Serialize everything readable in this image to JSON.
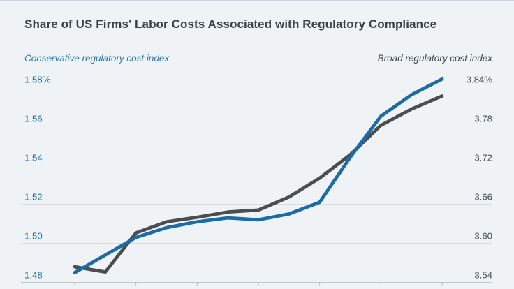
{
  "page": {
    "title": "Share of US Firms' Labor Costs Associated with Regulatory Compliance"
  },
  "legend": {
    "left_label": "Conservative regulatory cost index",
    "right_label": "Broad regulatory cost index"
  },
  "colors": {
    "background": "#eff3f6",
    "top_border": "#cdd3da",
    "title_text": "#3b4247",
    "conservative_line": "#1b6ca6",
    "broad_line": "#4b4d4e",
    "left_axis_text": "#1d6ba3",
    "right_axis_text": "#474f54",
    "gridline": "#d9dde1",
    "axis_line": "#c2c8d0",
    "tick": "#b6bcc4"
  },
  "chart_data": {
    "type": "line",
    "title": "Share of US Firms' Labor Costs Associated with Regulatory Compliance",
    "grid": true,
    "x_tick_count": 7,
    "x_tick_labels": [],
    "x_tick_labels_visible": false,
    "points_per_series": 13,
    "series": [
      {
        "name": "Conservative regulatory cost index",
        "axis": "left",
        "color": "#1b6ca6",
        "values": [
          1.485,
          1.494,
          1.503,
          1.508,
          1.511,
          1.513,
          1.512,
          1.515,
          1.521,
          1.544,
          1.565,
          1.576,
          1.584
        ]
      },
      {
        "name": "Broad regulatory cost index",
        "axis": "right",
        "color": "#4b4d4e",
        "values": [
          3.564,
          3.556,
          3.616,
          3.633,
          3.64,
          3.648,
          3.651,
          3.671,
          3.7,
          3.736,
          3.781,
          3.806,
          3.826
        ]
      }
    ],
    "left_axis": {
      "label": "Conservative regulatory cost index",
      "min": 1.48,
      "max": 1.58,
      "tick_step": 0.02,
      "tick_labels": [
        "1.48",
        "1.50",
        "1.52",
        "1.54",
        "1.56",
        "1.58%"
      ]
    },
    "right_axis": {
      "label": "Broad regulatory cost index",
      "min": 3.54,
      "max": 3.84,
      "tick_step": 0.06,
      "tick_labels": [
        "3.54",
        "3.60",
        "3.66",
        "3.72",
        "3.78",
        "3.84%"
      ]
    },
    "legend_position": "top"
  }
}
